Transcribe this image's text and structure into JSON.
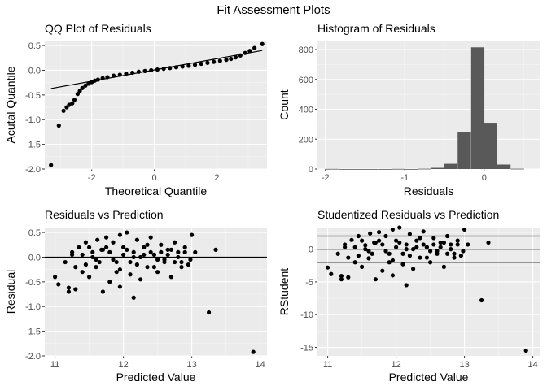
{
  "title": "Fit Assessment Plots",
  "chart_data": [
    {
      "type": "scatter",
      "title": "QQ Plot of Residuals",
      "xlabel": "Theoretical Quantile",
      "ylabel": "Acutal Quantile",
      "xlim": [
        -3.5,
        3.6
      ],
      "ylim": [
        -2.0,
        0.6
      ],
      "xticks": [
        -2,
        0,
        2
      ],
      "xtick_labels": [
        "-2",
        "0",
        "2"
      ],
      "yticks": [
        -2.0,
        -1.5,
        -1.0,
        -0.5,
        0.0,
        0.5
      ],
      "ytick_labels": [
        "-2.0",
        "-1.5",
        "-1.0",
        "-0.5",
        "0.0",
        "0.5"
      ],
      "grid": true,
      "series": [
        {
          "x": [
            -3.3,
            -3.05,
            -2.9,
            -2.8,
            -2.72,
            -2.62,
            -2.55,
            -2.45,
            -2.38,
            -2.3,
            -2.2,
            -2.1,
            -2.0,
            -1.9,
            -1.8,
            -1.65,
            -1.5,
            -1.3,
            -1.1,
            -0.9,
            -0.7,
            -0.5,
            -0.3,
            -0.1,
            0.1,
            0.3,
            0.5,
            0.7,
            0.9,
            1.1,
            1.3,
            1.5,
            1.7,
            1.9,
            2.1,
            2.3,
            2.45,
            2.6,
            2.75,
            2.9,
            3.05,
            3.2,
            3.45
          ],
          "y": [
            -1.92,
            -1.12,
            -0.82,
            -0.75,
            -0.7,
            -0.67,
            -0.6,
            -0.48,
            -0.42,
            -0.36,
            -0.31,
            -0.27,
            -0.24,
            -0.21,
            -0.19,
            -0.16,
            -0.14,
            -0.11,
            -0.09,
            -0.07,
            -0.05,
            -0.03,
            -0.015,
            0.0,
            0.015,
            0.03,
            0.045,
            0.06,
            0.075,
            0.09,
            0.11,
            0.13,
            0.15,
            0.17,
            0.19,
            0.21,
            0.23,
            0.26,
            0.3,
            0.35,
            0.39,
            0.45,
            0.53
          ]
        }
      ],
      "reference_line": {
        "x": [
          -3.3,
          3.45
        ],
        "y": [
          -0.37,
          0.4
        ]
      }
    },
    {
      "type": "bar",
      "title": "Histogram of Residuals",
      "xlabel": "Residuals",
      "ylabel": "Count",
      "xlim": [
        -2.1,
        0.7
      ],
      "ylim": [
        0,
        860
      ],
      "xticks": [
        -2,
        -1,
        0
      ],
      "xtick_labels": [
        "-2",
        "-1",
        "0"
      ],
      "yticks": [
        0,
        200,
        400,
        600,
        800
      ],
      "ytick_labels": [
        "0",
        "200",
        "400",
        "600",
        "800"
      ],
      "grid": true,
      "bin_width": 0.167,
      "bin_centers": [
        -1.92,
        -1.75,
        -1.58,
        -1.42,
        -1.25,
        -1.08,
        -0.92,
        -0.75,
        -0.58,
        -0.42,
        -0.25,
        -0.08,
        0.08,
        0.25,
        0.42
      ],
      "values": [
        1,
        0,
        0,
        0,
        0,
        1,
        0,
        2,
        8,
        35,
        245,
        815,
        310,
        30,
        2
      ]
    },
    {
      "type": "scatter",
      "title": "Residuals vs Prediction",
      "xlabel": "Predicted Value",
      "ylabel": "Residual",
      "xlim": [
        10.85,
        14.1
      ],
      "ylim": [
        -2.0,
        0.6
      ],
      "xticks": [
        11,
        12,
        13,
        14
      ],
      "xtick_labels": [
        "11",
        "12",
        "13",
        "14"
      ],
      "yticks": [
        -2.0,
        -1.5,
        -1.0,
        -0.5,
        0.0,
        0.5
      ],
      "ytick_labels": [
        "-2.0",
        "-1.5",
        "-1.0",
        "-0.5",
        "0.0",
        "0.5"
      ],
      "grid": true,
      "hline": 0,
      "series": [
        {
          "x": [
            11.0,
            11.05,
            11.15,
            11.2,
            11.25,
            11.3,
            11.35,
            11.4,
            11.45,
            11.5,
            11.55,
            11.6,
            11.62,
            11.68,
            11.7,
            11.75,
            11.8,
            11.85,
            11.9,
            11.95,
            12.0,
            12.05,
            12.1,
            12.15,
            12.2,
            12.25,
            12.3,
            12.35,
            12.4,
            12.45,
            12.5,
            12.55,
            12.6,
            12.65,
            12.7,
            12.75,
            12.8,
            12.85,
            12.9,
            12.95,
            13.0,
            13.05,
            11.4,
            11.5,
            11.7,
            11.9,
            12.0,
            12.2,
            12.4,
            12.6,
            12.8,
            11.3,
            11.6,
            11.8,
            12.1,
            12.3,
            12.5,
            12.7,
            12.9,
            11.45,
            11.65,
            11.85,
            12.05,
            12.25,
            12.45,
            12.65,
            12.85,
            11.55,
            11.75,
            11.95,
            12.15,
            12.35,
            12.55,
            12.75,
            11.25,
            11.95,
            12.45,
            12.98,
            13.35,
            13.25,
            13.9,
            12.15,
            11.2
          ],
          "y": [
            -0.4,
            -0.55,
            -0.1,
            -0.7,
            0.05,
            -0.65,
            0.2,
            -0.3,
            0.3,
            -0.4,
            0.1,
            -0.2,
            0.35,
            0.15,
            -0.7,
            0.4,
            -0.5,
            0.3,
            -0.3,
            0.45,
            0.2,
            0.5,
            -0.35,
            0.1,
            0.35,
            -0.45,
            0.2,
            -0.2,
            0.4,
            0.05,
            -0.3,
            0.25,
            -0.1,
            0.15,
            -0.4,
            0.3,
            0.1,
            -0.2,
            0.2,
            -0.15,
            0.45,
            0.1,
            0.05,
            0.2,
            0.15,
            -0.1,
            0.05,
            -0.15,
            0.1,
            -0.05,
            0.0,
            -0.2,
            -0.05,
            0.1,
            -0.1,
            0.05,
            -0.05,
            0.15,
            0.1,
            -0.15,
            -0.1,
            -0.05,
            0.15,
            0.0,
            -0.2,
            0.05,
            -0.1,
            0.0,
            0.2,
            -0.25,
            0.0,
            0.25,
            0.1,
            -0.1,
            0.1,
            -0.6,
            0.05,
            -0.05,
            0.15,
            -1.12,
            -1.92,
            -0.82,
            -0.62
          ]
        }
      ]
    },
    {
      "type": "scatter",
      "title": "Studentized Residuals vs Prediction",
      "xlabel": "Predicted Value",
      "ylabel": "RStudent",
      "xlim": [
        10.85,
        14.1
      ],
      "ylim": [
        -16.3,
        3.3
      ],
      "xticks": [
        11,
        12,
        13,
        14
      ],
      "xtick_labels": [
        "11",
        "12",
        "13",
        "14"
      ],
      "yticks": [
        -15,
        -10,
        -5,
        0
      ],
      "ytick_labels": [
        "-15",
        "-10",
        "-5",
        "0"
      ],
      "grid": true,
      "hlines": [
        2,
        0,
        -2
      ],
      "series": [
        {
          "x": [
            11.0,
            11.05,
            11.15,
            11.2,
            11.25,
            11.3,
            11.35,
            11.4,
            11.45,
            11.5,
            11.55,
            11.6,
            11.62,
            11.68,
            11.7,
            11.75,
            11.8,
            11.85,
            11.9,
            11.95,
            12.0,
            12.05,
            12.1,
            12.15,
            12.2,
            12.25,
            12.3,
            12.35,
            12.4,
            12.45,
            12.5,
            12.55,
            12.6,
            12.65,
            12.7,
            12.75,
            12.8,
            12.85,
            12.9,
            12.95,
            13.0,
            13.05,
            11.4,
            11.5,
            11.7,
            11.9,
            12.0,
            12.2,
            12.4,
            12.6,
            12.8,
            11.3,
            11.6,
            11.8,
            12.1,
            12.3,
            12.5,
            12.7,
            12.9,
            11.45,
            11.65,
            11.85,
            12.05,
            12.25,
            12.45,
            12.65,
            12.85,
            11.55,
            11.75,
            11.95,
            12.15,
            12.35,
            12.55,
            12.75,
            11.25,
            11.95,
            12.45,
            12.98,
            13.35,
            13.25,
            13.9,
            12.15,
            11.2
          ],
          "y": [
            -2.8,
            -3.8,
            -0.7,
            -4.6,
            0.3,
            -4.3,
            1.4,
            -2.0,
            2.0,
            -2.7,
            0.6,
            -1.4,
            2.4,
            1.0,
            -4.6,
            2.6,
            -3.3,
            2.0,
            -2.0,
            3.0,
            1.3,
            3.3,
            -2.3,
            0.7,
            2.3,
            -3.0,
            1.3,
            -1.3,
            2.7,
            0.3,
            -2.0,
            1.7,
            -0.7,
            1.0,
            -2.7,
            2.0,
            0.7,
            -1.3,
            1.3,
            -1.0,
            3.0,
            0.7,
            0.3,
            1.3,
            1.0,
            -0.7,
            0.3,
            -1.0,
            0.7,
            -0.3,
            0.0,
            -1.3,
            -0.3,
            0.7,
            -0.7,
            0.3,
            -0.3,
            1.0,
            0.7,
            -1.0,
            -0.7,
            -0.3,
            1.0,
            0.0,
            -1.3,
            0.3,
            -0.7,
            0.0,
            1.3,
            -1.7,
            0.0,
            1.7,
            0.7,
            -0.7,
            0.7,
            -4.0,
            0.3,
            -0.3,
            1.0,
            -7.8,
            -15.5,
            -5.5,
            -4.1
          ]
        }
      ]
    }
  ]
}
